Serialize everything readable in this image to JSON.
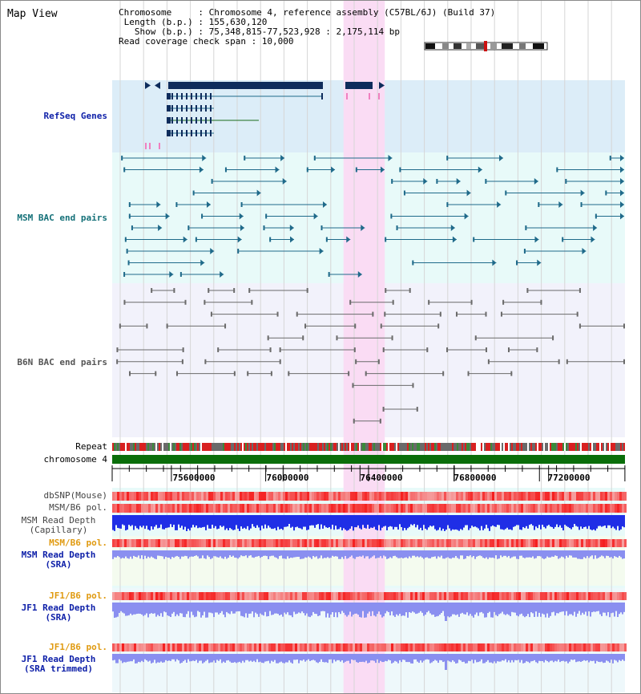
{
  "title": "Map View",
  "info": {
    "chromosome": "Chromosome     : Chromosome 4, reference assembly (C57BL/6J) (Build 37)",
    "length": "Length (b.p.) : 155,630,120",
    "show": "  Show (b.p.) : 75,348,815-77,523,928 : 2,175,114 bp",
    "coverage": "Read coverage check span : 10,000"
  },
  "tracks": {
    "refseq": "RefSeq Genes",
    "msm_bac": "MSM BAC end pairs",
    "b6n_bac": "B6N BAC end pairs",
    "repeat": "Repeat",
    "chromosome": "chromosome 4",
    "dbsnp": "dbSNP(Mouse)",
    "msm_pol": "MSM/B6 pol.",
    "msm_depth_cap_1": "MSM Read Depth",
    "msm_depth_cap_2": "(Capillary)",
    "msm_pol_sra": "MSM/B6 pol.",
    "msm_depth_sra_1": "MSM Read Depth",
    "msm_depth_sra_2": "(SRA)",
    "jf1_pol": "JF1/B6 pol.",
    "jf1_depth_1": "JF1 Read Depth",
    "jf1_depth_2": "(SRA)",
    "jf1_pol_trim": "JF1/B6 pol.",
    "jf1_trim_1": "JF1 Read Depth",
    "jf1_trim_2": "(SRA trimmed)"
  },
  "axis": {
    "ticks": [
      "75600000",
      "76000000",
      "76400000",
      "76800000",
      "77200000"
    ],
    "tick_positions_bp": [
      75600000,
      76000000,
      76400000,
      76800000,
      77200000
    ],
    "range_bp": [
      75348815,
      77523928
    ]
  },
  "highlight_bp": [
    76330000,
    76505000
  ],
  "colors": {
    "refseq_bg": "#dcedf8",
    "msm_bg": "#e8faf9",
    "b6n_bg": "#f2f2fb",
    "highlight": "#fadcf4",
    "refseq_gene": "#0e2c5c",
    "msm_feature": "#1f6a8a",
    "b6n_feature": "#6b6b6b",
    "chromosome_bar": "#0a6e0a",
    "label_blue": "#0d1fa8",
    "label_teal": "#147078",
    "label_orange": "#e09a10",
    "depth_blue": "#1f2ee6",
    "depth_light": "#8a8ff0"
  }
}
